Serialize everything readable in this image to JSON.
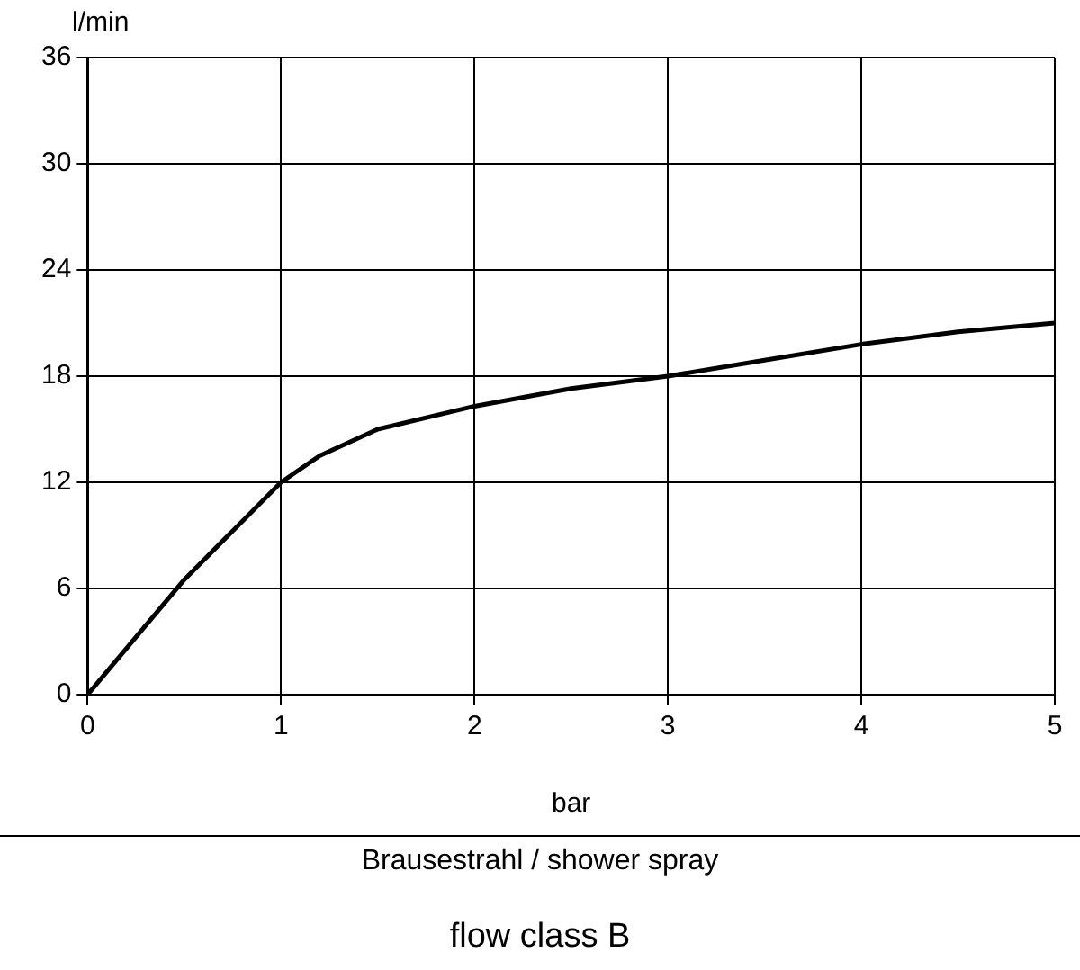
{
  "chart_data": {
    "type": "line",
    "title": "flow class B",
    "xlabel": "bar",
    "ylabel": "l/min",
    "annotations": [
      "Brausestrahl / shower spray"
    ],
    "x": [
      0,
      0.5,
      1,
      1.2,
      1.5,
      2,
      2.5,
      3,
      3.5,
      4,
      4.5,
      5
    ],
    "series": [
      {
        "color": "#000000",
        "values": [
          0,
          6.5,
          12,
          13.5,
          15,
          16.3,
          17.3,
          18,
          18.9,
          19.8,
          20.5,
          21
        ]
      }
    ],
    "xlim": [
      0,
      5
    ],
    "xticks": [
      0,
      1,
      2,
      3,
      4,
      5
    ],
    "ylim": [
      0,
      36
    ],
    "yticks": [
      0,
      6,
      12,
      18,
      24,
      30,
      36
    ],
    "grid": true,
    "legend": false,
    "marker": "none",
    "line_style": "solid"
  }
}
